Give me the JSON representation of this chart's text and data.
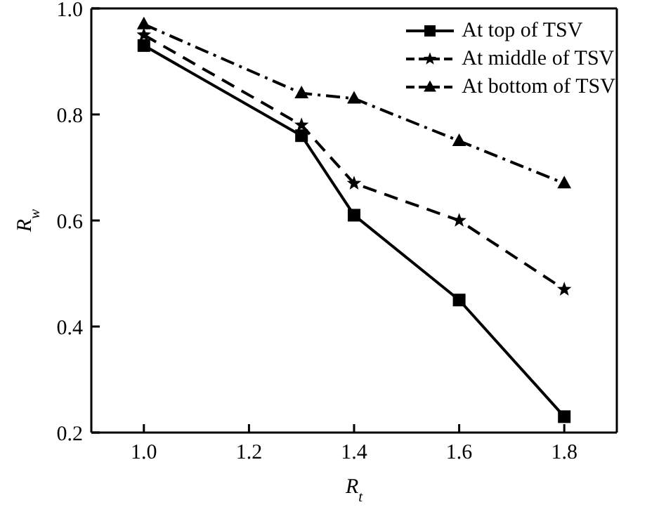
{
  "chart_data": {
    "type": "line",
    "xlabel": "R$_{t}$",
    "ylabel": "R$_{w}$",
    "x": [
      1.0,
      1.3,
      1.4,
      1.6,
      1.8
    ],
    "series": [
      {
        "name": "At top of TSV",
        "color": "#000000",
        "marker": "square",
        "line_style": "solid",
        "values": [
          0.93,
          0.76,
          0.61,
          0.45,
          0.23
        ]
      },
      {
        "name": "At middle of TSV",
        "color": "#000000",
        "marker": "star",
        "line_style": "dashed",
        "values": [
          0.95,
          0.78,
          0.67,
          0.6,
          0.47
        ]
      },
      {
        "name": "At bottom of TSV",
        "color": "#000000",
        "marker": "triangle",
        "line_style": "dashdot",
        "values": [
          0.97,
          0.84,
          0.83,
          0.75,
          0.67
        ]
      }
    ],
    "xlim": [
      0.9,
      1.9
    ],
    "xticks": [
      {
        "value": 1,
        "label": "1.0"
      },
      {
        "value": 1.2,
        "label": "1.2"
      },
      {
        "value": 1.4,
        "label": "1.4"
      },
      {
        "value": 1.6,
        "label": "1.6"
      },
      {
        "value": 1.8,
        "label": "1.8"
      }
    ],
    "ylim": [
      0.2,
      1.0
    ],
    "yticks": [
      {
        "value": 0.2,
        "label": "0.2"
      },
      {
        "value": 0.4,
        "label": "0.4"
      },
      {
        "value": 0.6,
        "label": "0.6"
      },
      {
        "value": 0.8,
        "label": "0.8"
      },
      {
        "value": 1,
        "label": "1.0"
      }
    ],
    "grid": false,
    "legend": "top right"
  }
}
